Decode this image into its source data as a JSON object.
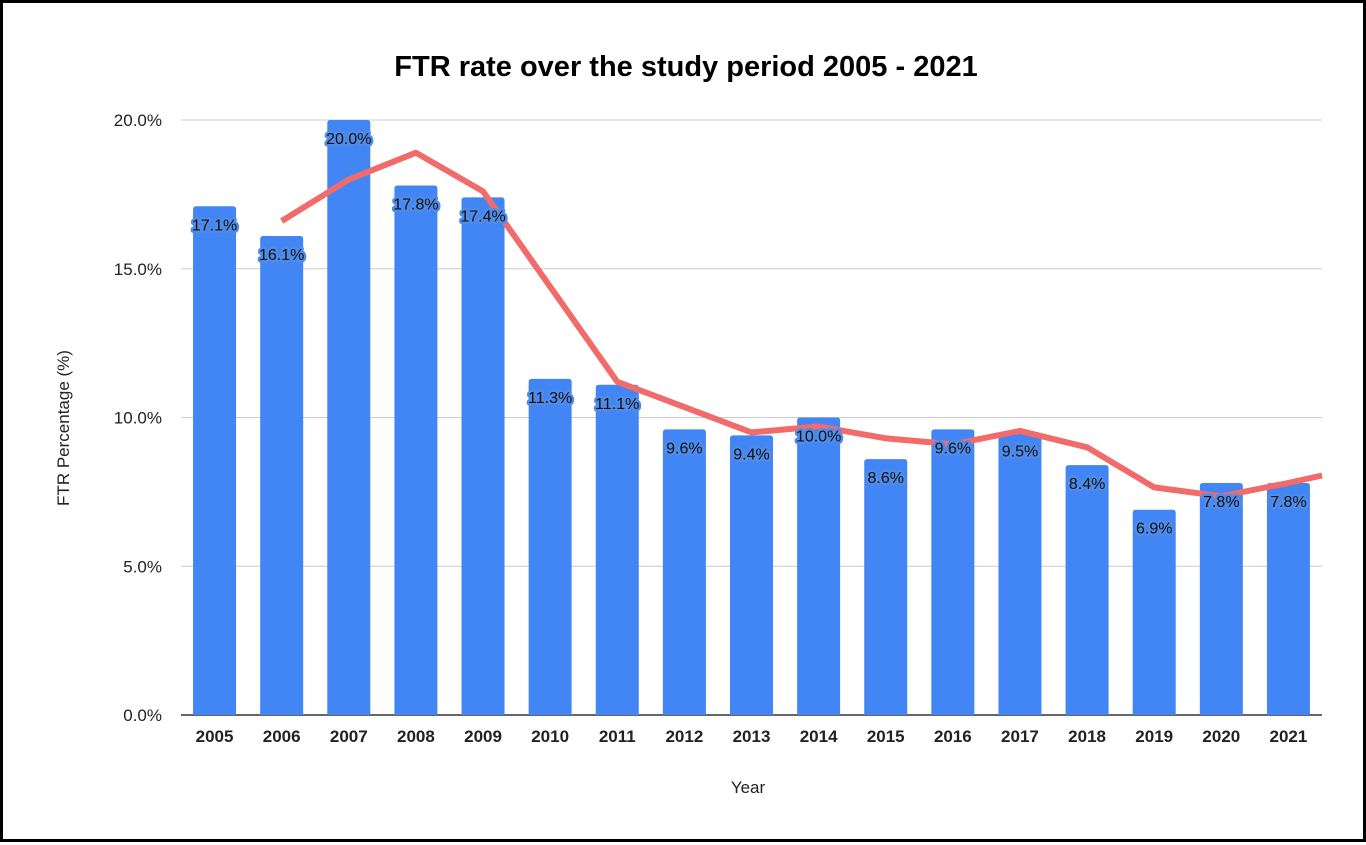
{
  "chart_data": {
    "type": "bar",
    "title": "FTR rate over the study period 2005 - 2021",
    "xlabel": "Year",
    "ylabel": "FTR Percentage (%)",
    "ylim": [
      0,
      20
    ],
    "y_ticks": [
      "0.0%",
      "5.0%",
      "10.0%",
      "15.0%",
      "20.0%"
    ],
    "y_tick_values": [
      0,
      5,
      10,
      15,
      20
    ],
    "categories": [
      "2005",
      "2006",
      "2007",
      "2008",
      "2009",
      "2010",
      "2011",
      "2012",
      "2013",
      "2014",
      "2015",
      "2016",
      "2017",
      "2018",
      "2019",
      "2020",
      "2021"
    ],
    "values": [
      17.1,
      16.1,
      20.0,
      17.8,
      17.4,
      11.3,
      11.1,
      9.6,
      9.4,
      10.0,
      8.6,
      9.6,
      9.5,
      8.4,
      6.9,
      7.8,
      7.8
    ],
    "data_labels": [
      "17.1%",
      "16.1%",
      "20.0%",
      "17.8%",
      "17.4%",
      "11.3%",
      "11.1%",
      "9.6%",
      "9.4%",
      "10.0%",
      "8.6%",
      "9.6%",
      "9.5%",
      "8.4%",
      "6.9%",
      "7.8%",
      "7.8%"
    ],
    "trendline": {
      "type": "line",
      "x": [
        "2006",
        "2007",
        "2008",
        "2009",
        "2010",
        "2011",
        "2012",
        "2013",
        "2014",
        "2015",
        "2016",
        "2017",
        "2018",
        "2019",
        "2020",
        "2021"
      ],
      "values": [
        16.6,
        18.0,
        18.9,
        17.6,
        14.4,
        11.2,
        10.35,
        9.5,
        9.7,
        9.3,
        9.1,
        9.55,
        9.0,
        7.65,
        7.35,
        7.8
      ],
      "end_value": 8.05
    },
    "grid": true,
    "legend": "none",
    "colors": {
      "bar": "#4285f4",
      "trendline": "#f26b6b",
      "grid": "#cccccc",
      "baseline": "#333333"
    }
  }
}
